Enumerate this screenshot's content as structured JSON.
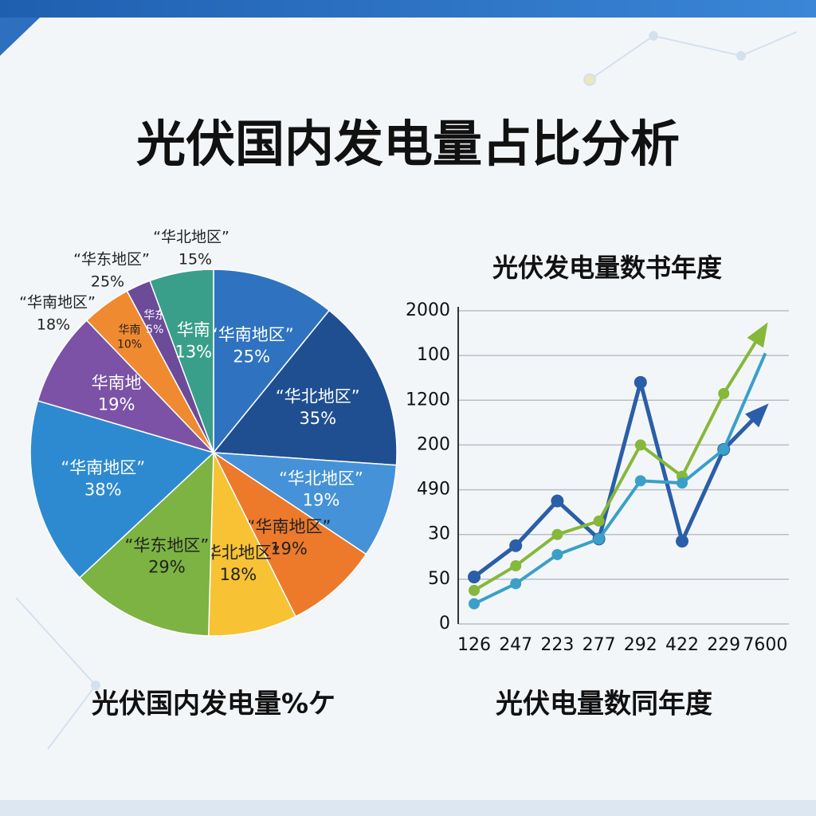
{
  "title": "光伏国内发电量占比分析",
  "chart_data": [
    {
      "type": "pie",
      "caption": "光伏国内发电量%ケ",
      "categories": [
        "“华南地区”",
        "“华北地区”",
        "“华北地区”",
        "“华南地区”",
        "“华北地区”",
        "“华东地区”",
        "“华南地区”",
        "华南地",
        "华南",
        "华东",
        "华南"
      ],
      "values": [
        25,
        35,
        19,
        19,
        18,
        29,
        38,
        19,
        10,
        5,
        13
      ],
      "value_labels": [
        "25%",
        "35%",
        "19%",
        "19%",
        "18%",
        "29%",
        "38%",
        "19%",
        "10%",
        "5%",
        "13%"
      ],
      "colors": [
        "#2f73c0",
        "#1f4f90",
        "#4592d8",
        "#ec7a2a",
        "#f7c233",
        "#7cb342",
        "#2e8ad0",
        "#7b52a6",
        "#f08a30",
        "#6c4b99",
        "#3a9f8a"
      ],
      "annotations": [
        [
          "“华北地区”",
          "15%"
        ],
        [
          "“华东地区”",
          "25%"
        ],
        [
          "“华南地区”",
          "18%"
        ]
      ]
    },
    {
      "type": "line",
      "title": "光伏发电量数书年度",
      "caption": "光伏电量数同年度",
      "categories": [
        "126",
        "247",
        "223",
        "277",
        "292",
        "422",
        "229",
        "7600"
      ],
      "ylim": [
        0,
        7
      ],
      "yticks": [
        0,
        {
          "value": 1,
          "label": "50"
        },
        {
          "value": 2,
          "label": "30"
        },
        {
          "value": 3,
          "label": "490"
        },
        {
          "value": 4,
          "label": "200"
        },
        {
          "value": 5,
          "label": "1200"
        },
        {
          "value": 6,
          "label": "100"
        },
        {
          "value": 7,
          "label": "2000"
        }
      ],
      "grid": true,
      "series": [
        {
          "color": "#2a5ea8",
          "values": [
            1.05,
            1.75,
            2.75,
            1.9,
            5.4,
            1.85,
            3.9,
            4.85
          ]
        },
        {
          "color": "#86b83a",
          "values": [
            0.75,
            1.3,
            2.0,
            2.3,
            4.0,
            3.3,
            5.15,
            6.65
          ]
        },
        {
          "color": "#3aa0c8",
          "values": [
            0.45,
            0.9,
            1.55,
            1.9,
            3.2,
            3.15,
            3.9,
            6.05
          ]
        }
      ]
    }
  ]
}
